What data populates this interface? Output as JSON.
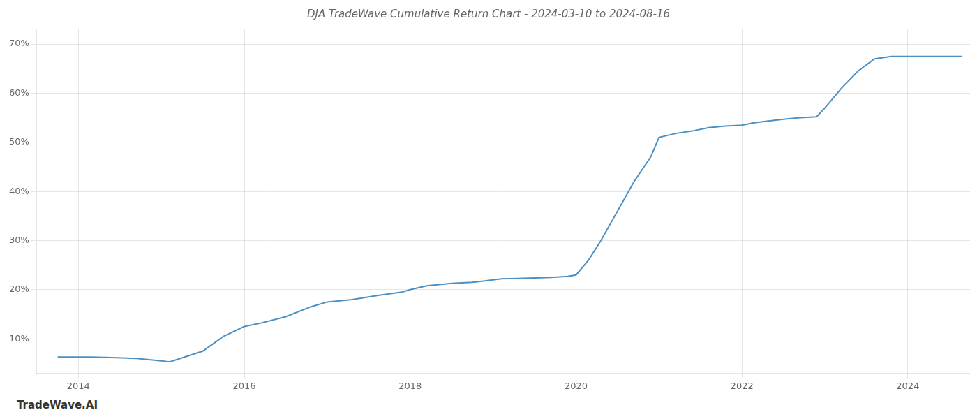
{
  "chart_data": {
    "type": "line",
    "title": "DJA TradeWave Cumulative Return Chart - 2024-03-10 to 2024-08-16",
    "annotations": [
      "TradeWave.AI"
    ],
    "x": [
      2013.75,
      2014.0,
      2014.15,
      2014.4,
      2014.7,
      2015.0,
      2015.1,
      2015.5,
      2015.75,
      2016.0,
      2016.2,
      2016.5,
      2016.8,
      2017.0,
      2017.3,
      2017.6,
      2017.9,
      2018.0,
      2018.2,
      2018.5,
      2018.75,
      2018.9,
      2019.0,
      2019.1,
      2019.3,
      2019.5,
      2019.7,
      2019.9,
      2020.0,
      2020.15,
      2020.3,
      2020.5,
      2020.7,
      2020.9,
      2021.0,
      2021.2,
      2021.4,
      2021.6,
      2021.8,
      2022.0,
      2022.15,
      2022.3,
      2022.5,
      2022.7,
      2022.9,
      2023.0,
      2023.2,
      2023.4,
      2023.6,
      2023.8,
      2024.0,
      2024.2,
      2024.5,
      2024.65
    ],
    "values": [
      6.3,
      6.3,
      6.3,
      6.2,
      6.0,
      5.5,
      5.3,
      7.5,
      10.5,
      12.5,
      13.2,
      14.5,
      16.5,
      17.5,
      18.0,
      18.8,
      19.5,
      20.0,
      20.8,
      21.3,
      21.5,
      21.8,
      22.0,
      22.2,
      22.3,
      22.4,
      22.5,
      22.7,
      23.0,
      26.0,
      30.0,
      36.0,
      42.0,
      47.0,
      51.0,
      51.8,
      52.3,
      53.0,
      53.3,
      53.5,
      54.0,
      54.3,
      54.7,
      55.0,
      55.2,
      57.0,
      61.0,
      64.5,
      67.0,
      67.5,
      67.5,
      67.5,
      67.5,
      67.5
    ],
    "color": "#4a90c4",
    "xlim": [
      2013.5,
      2024.75
    ],
    "ylim": [
      3.0,
      73.0
    ],
    "xticks": [
      2014,
      2016,
      2018,
      2020,
      2022,
      2024
    ],
    "yticks": [
      {
        "value": 10,
        "label": "10%"
      },
      {
        "value": 20,
        "label": "20%"
      },
      {
        "value": 30,
        "label": "30%"
      },
      {
        "value": 40,
        "label": "40%"
      },
      {
        "value": 50,
        "label": "50%"
      },
      {
        "value": 60,
        "label": "60%"
      },
      {
        "value": 70,
        "label": "70%"
      }
    ],
    "grid": true
  }
}
